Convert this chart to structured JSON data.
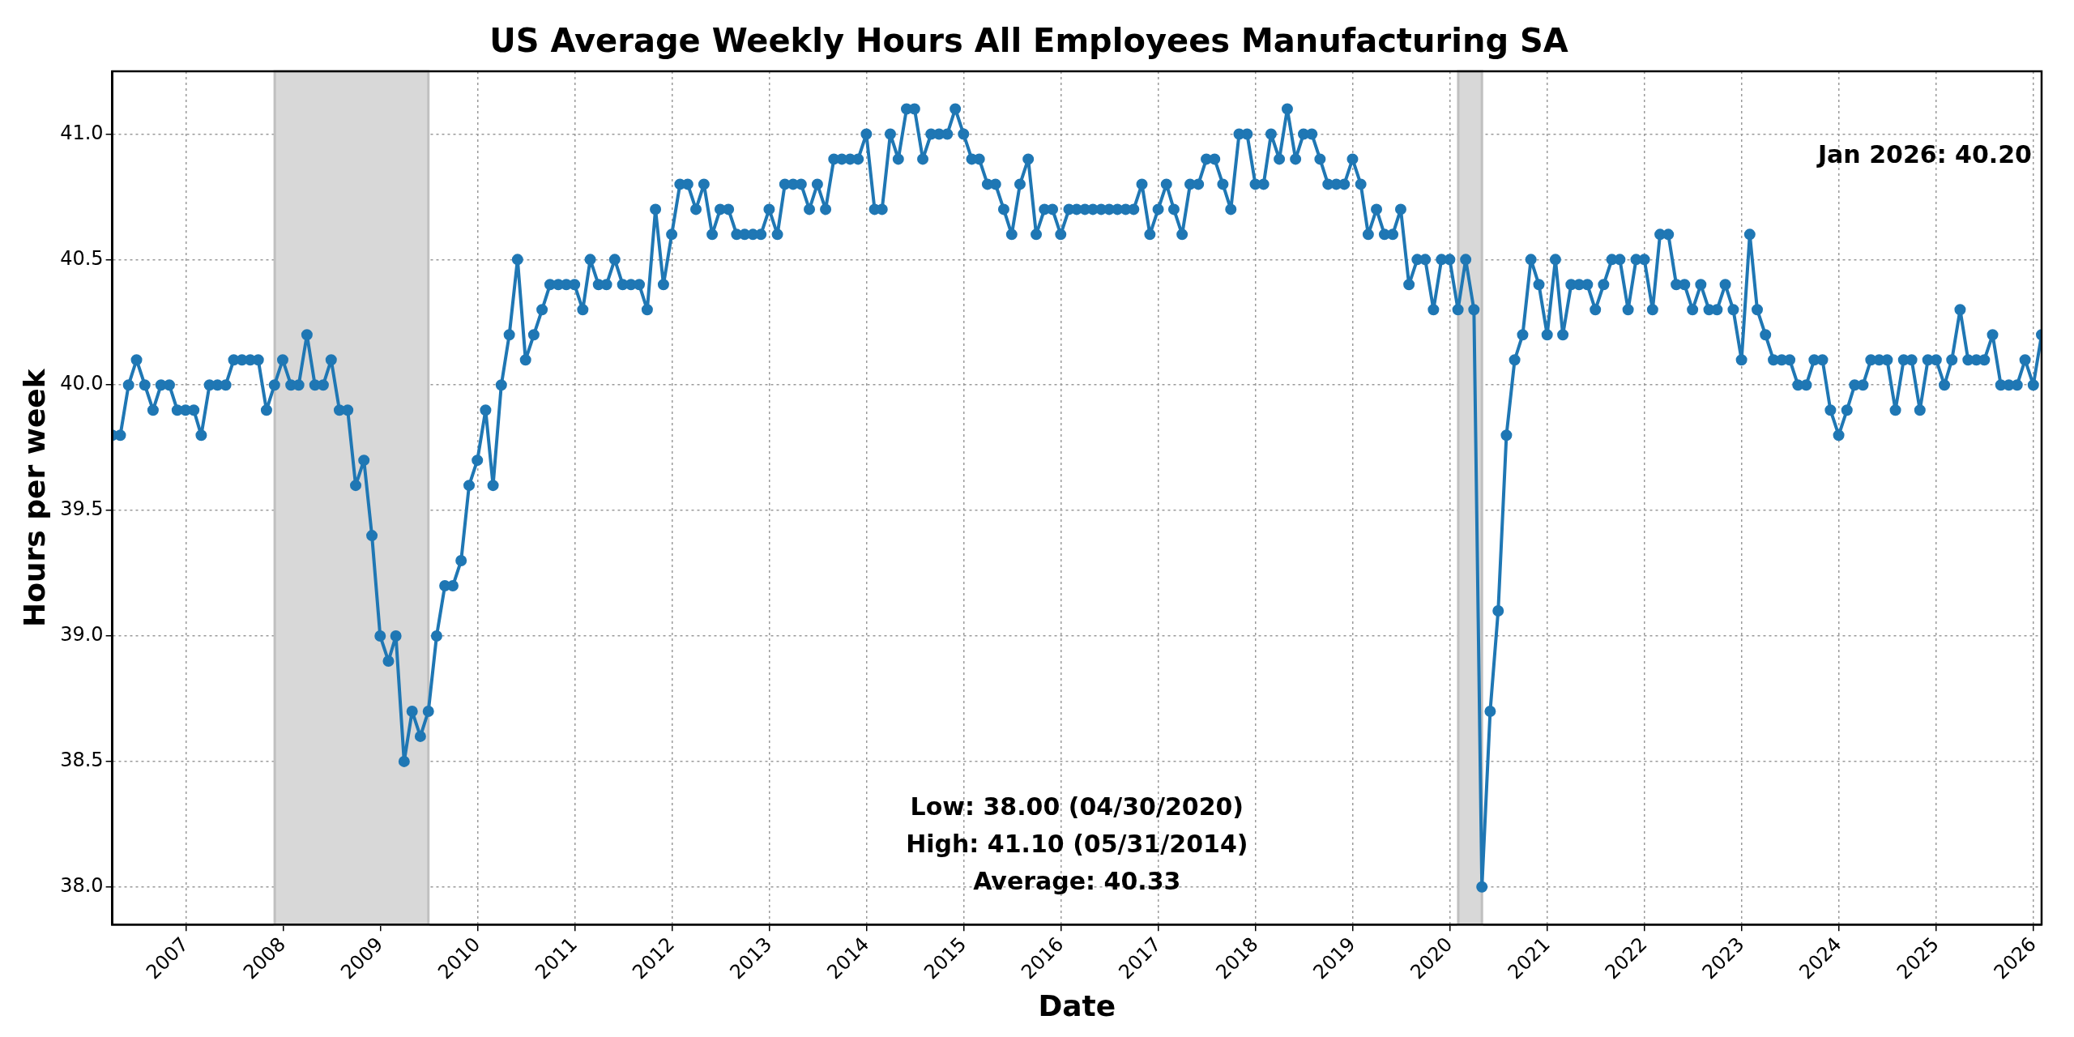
{
  "chart_data": {
    "type": "line",
    "title": "US Average Weekly Hours All Employees Manufacturing SA",
    "xlabel": "Date",
    "ylabel": "Hours per week",
    "x": [
      "2006-03-31",
      "2006-04-30",
      "2006-05-31",
      "2006-06-30",
      "2006-07-31",
      "2006-08-31",
      "2006-09-30",
      "2006-10-31",
      "2006-11-30",
      "2006-12-31",
      "2007-01-31",
      "2007-02-28",
      "2007-03-31",
      "2007-04-30",
      "2007-05-31",
      "2007-06-30",
      "2007-07-31",
      "2007-08-31",
      "2007-09-30",
      "2007-10-31",
      "2007-11-30",
      "2007-12-31",
      "2008-01-31",
      "2008-02-29",
      "2008-03-31",
      "2008-04-30",
      "2008-05-31",
      "2008-06-30",
      "2008-07-31",
      "2008-08-31",
      "2008-09-30",
      "2008-10-31",
      "2008-11-30",
      "2008-12-31",
      "2009-01-31",
      "2009-02-28",
      "2009-03-31",
      "2009-04-30",
      "2009-05-31",
      "2009-06-30",
      "2009-07-31",
      "2009-08-31",
      "2009-09-30",
      "2009-10-31",
      "2009-11-30",
      "2009-12-31",
      "2010-01-31",
      "2010-02-28",
      "2010-03-31",
      "2010-04-30",
      "2010-05-31",
      "2010-06-30",
      "2010-07-31",
      "2010-08-31",
      "2010-09-30",
      "2010-10-31",
      "2010-11-30",
      "2010-12-31",
      "2011-01-31",
      "2011-02-28",
      "2011-03-31",
      "2011-04-30",
      "2011-05-31",
      "2011-06-30",
      "2011-07-31",
      "2011-08-31",
      "2011-09-30",
      "2011-10-31",
      "2011-11-30",
      "2011-12-31",
      "2012-01-31",
      "2012-02-29",
      "2012-03-31",
      "2012-04-30",
      "2012-05-31",
      "2012-06-30",
      "2012-07-31",
      "2012-08-31",
      "2012-09-30",
      "2012-10-31",
      "2012-11-30",
      "2012-12-31",
      "2013-01-31",
      "2013-02-28",
      "2013-03-31",
      "2013-04-30",
      "2013-05-31",
      "2013-06-30",
      "2013-07-31",
      "2013-08-31",
      "2013-09-30",
      "2013-10-31",
      "2013-11-30",
      "2013-12-31",
      "2014-01-31",
      "2014-02-28",
      "2014-03-31",
      "2014-04-30",
      "2014-05-31",
      "2014-06-30",
      "2014-07-31",
      "2014-08-31",
      "2014-09-30",
      "2014-10-31",
      "2014-11-30",
      "2014-12-31",
      "2015-01-31",
      "2015-02-28",
      "2015-03-31",
      "2015-04-30",
      "2015-05-31",
      "2015-06-30",
      "2015-07-31",
      "2015-08-31",
      "2015-09-30",
      "2015-10-31",
      "2015-11-30",
      "2015-12-31",
      "2016-01-31",
      "2016-02-29",
      "2016-03-31",
      "2016-04-30",
      "2016-05-31",
      "2016-06-30",
      "2016-07-31",
      "2016-08-31",
      "2016-09-30",
      "2016-10-31",
      "2016-11-30",
      "2016-12-31",
      "2017-01-31",
      "2017-02-28",
      "2017-03-31",
      "2017-04-30",
      "2017-05-31",
      "2017-06-30",
      "2017-07-31",
      "2017-08-31",
      "2017-09-30",
      "2017-10-31",
      "2017-11-30",
      "2017-12-31",
      "2018-01-31",
      "2018-02-28",
      "2018-03-31",
      "2018-04-30",
      "2018-05-31",
      "2018-06-30",
      "2018-07-31",
      "2018-08-31",
      "2018-09-30",
      "2018-10-31",
      "2018-11-30",
      "2018-12-31",
      "2019-01-31",
      "2019-02-28",
      "2019-03-31",
      "2019-04-30",
      "2019-05-31",
      "2019-06-30",
      "2019-07-31",
      "2019-08-31",
      "2019-09-30",
      "2019-10-31",
      "2019-11-30",
      "2019-12-31",
      "2020-01-31",
      "2020-02-29",
      "2020-03-31",
      "2020-04-30",
      "2020-05-31",
      "2020-06-30",
      "2020-07-31",
      "2020-08-31",
      "2020-09-30",
      "2020-10-31",
      "2020-11-30",
      "2020-12-31",
      "2021-01-31",
      "2021-02-28",
      "2021-03-31",
      "2021-04-30",
      "2021-05-31",
      "2021-06-30",
      "2021-07-31",
      "2021-08-31",
      "2021-09-30",
      "2021-10-31",
      "2021-11-30",
      "2021-12-31",
      "2022-01-31",
      "2022-02-28",
      "2022-03-31",
      "2022-04-30",
      "2022-05-31",
      "2022-06-30",
      "2022-07-31",
      "2022-08-31",
      "2022-09-30",
      "2022-10-31",
      "2022-11-30",
      "2022-12-31",
      "2023-01-31",
      "2023-02-28",
      "2023-03-31",
      "2023-04-30",
      "2023-05-31",
      "2023-06-30",
      "2023-07-31",
      "2023-08-31",
      "2023-09-30",
      "2023-10-31",
      "2023-11-30",
      "2023-12-31",
      "2024-01-31",
      "2024-02-29",
      "2024-03-31",
      "2024-04-30",
      "2024-05-31",
      "2024-06-30",
      "2024-07-31",
      "2024-08-31",
      "2024-09-30",
      "2024-10-31",
      "2024-11-30",
      "2024-12-31",
      "2025-01-31",
      "2025-02-28",
      "2025-03-31",
      "2025-04-30",
      "2025-05-31",
      "2025-06-30",
      "2025-07-31",
      "2025-08-31",
      "2025-09-30",
      "2025-10-31",
      "2025-11-30",
      "2025-12-31",
      "2026-01-31"
    ],
    "series": [
      {
        "color": "#1f77b4",
        "values": [
          39.8,
          39.8,
          40.0,
          40.1,
          40.0,
          39.9,
          40.0,
          40.0,
          39.9,
          39.9,
          39.9,
          39.8,
          40.0,
          40.0,
          40.0,
          40.1,
          40.1,
          40.1,
          40.1,
          39.9,
          40.0,
          40.1,
          40.0,
          40.0,
          40.2,
          40.0,
          40.0,
          40.1,
          39.9,
          39.9,
          39.6,
          39.7,
          39.4,
          39.0,
          38.9,
          39.0,
          38.5,
          38.7,
          38.6,
          38.7,
          39.0,
          39.2,
          39.2,
          39.3,
          39.6,
          39.7,
          39.9,
          39.6,
          40.0,
          40.2,
          40.5,
          40.1,
          40.2,
          40.3,
          40.4,
          40.4,
          40.4,
          40.4,
          40.3,
          40.5,
          40.4,
          40.4,
          40.5,
          40.4,
          40.4,
          40.4,
          40.3,
          40.7,
          40.4,
          40.6,
          40.8,
          40.8,
          40.7,
          40.8,
          40.6,
          40.7,
          40.7,
          40.6,
          40.6,
          40.6,
          40.6,
          40.7,
          40.6,
          40.8,
          40.8,
          40.8,
          40.7,
          40.8,
          40.7,
          40.9,
          40.9,
          40.9,
          40.9,
          41.0,
          40.7,
          40.7,
          41.0,
          40.9,
          41.1,
          41.1,
          40.9,
          41.0,
          41.0,
          41.0,
          41.1,
          41.0,
          40.9,
          40.9,
          40.8,
          40.8,
          40.7,
          40.6,
          40.8,
          40.9,
          40.6,
          40.7,
          40.7,
          40.6,
          40.7,
          40.7,
          40.7,
          40.7,
          40.7,
          40.7,
          40.7,
          40.7,
          40.7,
          40.8,
          40.6,
          40.7,
          40.8,
          40.7,
          40.6,
          40.8,
          40.8,
          40.9,
          40.9,
          40.8,
          40.7,
          41.0,
          41.0,
          40.8,
          40.8,
          41.0,
          40.9,
          41.1,
          40.9,
          41.0,
          41.0,
          40.9,
          40.8,
          40.8,
          40.8,
          40.9,
          40.8,
          40.6,
          40.7,
          40.6,
          40.6,
          40.7,
          40.4,
          40.5,
          40.5,
          40.3,
          40.5,
          40.5,
          40.3,
          40.5,
          40.3,
          38.0,
          38.7,
          39.1,
          39.8,
          40.1,
          40.2,
          40.5,
          40.4,
          40.2,
          40.5,
          40.2,
          40.4,
          40.4,
          40.4,
          40.3,
          40.4,
          40.5,
          40.5,
          40.3,
          40.5,
          40.5,
          40.3,
          40.6,
          40.6,
          40.4,
          40.4,
          40.3,
          40.4,
          40.3,
          40.3,
          40.4,
          40.3,
          40.1,
          40.6,
          40.3,
          40.2,
          40.1,
          40.1,
          40.1,
          40.0,
          40.0,
          40.1,
          40.1,
          39.9,
          39.8,
          39.9,
          40.0,
          40.0,
          40.1,
          40.1,
          40.1,
          39.9,
          40.1,
          40.1,
          39.9,
          40.1,
          40.1,
          40.0,
          40.1,
          40.3,
          40.1,
          40.1,
          40.1,
          40.2,
          40.0,
          40.0,
          40.0,
          40.1,
          40.0,
          40.2
        ]
      }
    ],
    "xlim": [
      "2006-03-31",
      "2026-01-31"
    ],
    "xticks": [
      {
        "value": "2007-01-01",
        "label": "2007"
      },
      {
        "value": "2008-01-01",
        "label": "2008"
      },
      {
        "value": "2009-01-01",
        "label": "2009"
      },
      {
        "value": "2010-01-01",
        "label": "2010"
      },
      {
        "value": "2011-01-01",
        "label": "2011"
      },
      {
        "value": "2012-01-01",
        "label": "2012"
      },
      {
        "value": "2013-01-01",
        "label": "2013"
      },
      {
        "value": "2014-01-01",
        "label": "2014"
      },
      {
        "value": "2015-01-01",
        "label": "2015"
      },
      {
        "value": "2016-01-01",
        "label": "2016"
      },
      {
        "value": "2017-01-01",
        "label": "2017"
      },
      {
        "value": "2018-01-01",
        "label": "2018"
      },
      {
        "value": "2019-01-01",
        "label": "2019"
      },
      {
        "value": "2020-01-01",
        "label": "2020"
      },
      {
        "value": "2021-01-01",
        "label": "2021"
      },
      {
        "value": "2022-01-01",
        "label": "2022"
      },
      {
        "value": "2023-01-01",
        "label": "2023"
      },
      {
        "value": "2024-01-01",
        "label": "2024"
      },
      {
        "value": "2025-01-01",
        "label": "2025"
      },
      {
        "value": "2026-01-01",
        "label": "2026"
      }
    ],
    "ylim": [
      37.85,
      41.25
    ],
    "yticks": [
      {
        "value": 38,
        "label": "38.0"
      },
      {
        "value": 38.5,
        "label": "38.5"
      },
      {
        "value": 39,
        "label": "39.0"
      },
      {
        "value": 39.5,
        "label": "39.5"
      },
      {
        "value": 40,
        "label": "40.0"
      },
      {
        "value": 40.5,
        "label": "40.5"
      },
      {
        "value": 41,
        "label": "41.0"
      }
    ],
    "bands": [
      {
        "axis": "x",
        "from": "2007-12-01",
        "to": "2009-06-30",
        "color": "#d8d8d8"
      },
      {
        "axis": "x",
        "from": "2020-02-01",
        "to": "2020-04-30",
        "color": "#d8d8d8"
      }
    ],
    "annotations": [
      "Low: 38.00 (04/30/2020)",
      "High: 41.10 (05/31/2014)",
      "Average: 40.33",
      "Jan 2026: 40.20"
    ],
    "grid": true,
    "legend": false,
    "marker": "circle",
    "line_style": "solid"
  }
}
